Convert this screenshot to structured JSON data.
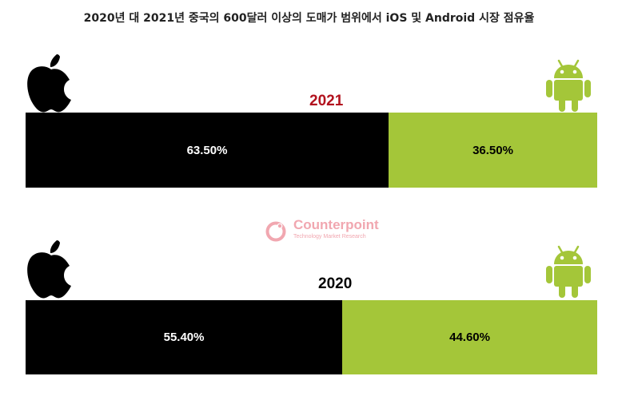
{
  "title": "2020년 대 2021년 중국의 600달러 이상의 도매가 범위에서 iOS 및 Android 시장 점유율",
  "chart_data": {
    "type": "bar",
    "stacked": true,
    "orientation": "horizontal",
    "categories": [
      "2021",
      "2020"
    ],
    "series": [
      {
        "name": "iOS",
        "values": [
          63.5,
          55.4
        ],
        "labels": [
          "63.50%",
          "55.40%"
        ],
        "color": "#000000",
        "label_color": "#ffffff",
        "icon": "apple-logo-icon"
      },
      {
        "name": "Android",
        "values": [
          36.5,
          44.6
        ],
        "labels": [
          "36.50%",
          "44.60%"
        ],
        "color": "#a4c639",
        "label_color": "#000000",
        "icon": "android-robot-icon"
      }
    ],
    "year_label_colors": [
      "#b2121e",
      "#000000"
    ],
    "xlim": [
      0,
      100
    ]
  },
  "watermark": {
    "brand": "Counterpoint",
    "subtitle": "Technology Market Research",
    "icon": "counterpoint-logo-icon",
    "color": "#f1a7b0"
  }
}
